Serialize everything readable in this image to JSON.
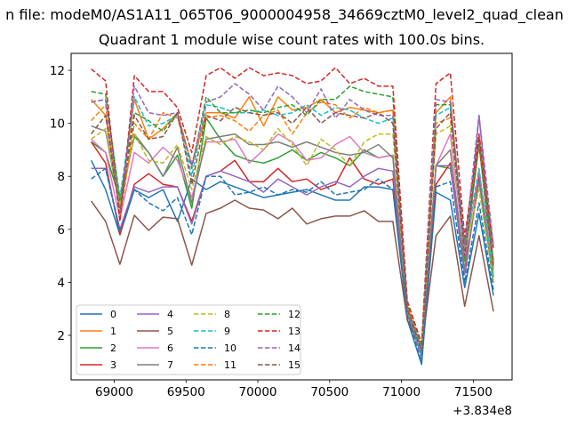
{
  "chart_data": {
    "type": "line",
    "suptitle": "n file: modeM0/AS1A11_065T06_9000004958_34669cztM0_level2_quad_clean",
    "title": "Quadrant 1 module wise count rates with 100.0s bins.",
    "xlabel": "",
    "ylabel": "",
    "x_offset_label": "+3.834e8",
    "xlim": [
      68700,
      71770
    ],
    "ylim": [
      0.32,
      12.64
    ],
    "xticks": [
      69000,
      69500,
      70000,
      70500,
      71000,
      71500
    ],
    "xtick_labels": [
      "69000",
      "69500",
      "70000",
      "70500",
      "71000",
      "71500"
    ],
    "yticks": [
      2,
      4,
      6,
      8,
      10,
      12
    ],
    "ytick_labels": [
      "2",
      "4",
      "6",
      "8",
      "10",
      "12"
    ],
    "grid": false,
    "legend_position": "lower-left",
    "legend_columns": 4,
    "x": [
      68840,
      68940,
      69040,
      69140,
      69240,
      69340,
      69440,
      69540,
      69640,
      69740,
      69840,
      69940,
      70040,
      70140,
      70240,
      70340,
      70440,
      70540,
      70640,
      70740,
      70840,
      70940,
      71040,
      71140,
      71240,
      71340,
      71440,
      71540,
      71640
    ],
    "series": [
      {
        "name": "0",
        "color": "#1f77b4",
        "dashed": false,
        "values": [
          8.6,
          7.5,
          5.8,
          7.5,
          7.2,
          7.5,
          6.3,
          7.9,
          7.5,
          7.8,
          7.6,
          7.4,
          7.2,
          7.3,
          7.4,
          7.5,
          7.3,
          7.1,
          7.1,
          7.6,
          7.6,
          7.5,
          2.6,
          0.9,
          7.4,
          7.1,
          3.8,
          6.6,
          3.5
        ]
      },
      {
        "name": "1",
        "color": "#ff7f0e",
        "dashed": false,
        "values": [
          10.9,
          10.3,
          6.9,
          10.9,
          9.4,
          9.8,
          10.4,
          8.4,
          10.4,
          10.4,
          10.2,
          11.0,
          9.9,
          11.0,
          10.5,
          10.6,
          10.9,
          10.4,
          10.6,
          10.5,
          10.4,
          10.5,
          3.1,
          1.5,
          10.4,
          11.0,
          5.0,
          9.2,
          4.5
        ]
      },
      {
        "name": "2",
        "color": "#2ca02c",
        "dashed": false,
        "values": [
          9.3,
          8.9,
          7.1,
          9.5,
          8.9,
          8.0,
          8.8,
          6.8,
          10.2,
          9.4,
          8.8,
          8.6,
          8.5,
          8.7,
          9.0,
          8.6,
          8.9,
          8.7,
          8.4,
          9.0,
          8.7,
          8.8,
          2.9,
          1.3,
          8.4,
          8.3,
          4.8,
          9.3,
          4.2
        ]
      },
      {
        "name": "3",
        "color": "#d62728",
        "dashed": false,
        "values": [
          9.3,
          8.5,
          5.8,
          7.7,
          8.1,
          7.7,
          7.6,
          6.3,
          8.0,
          8.2,
          8.6,
          7.8,
          7.8,
          8.3,
          7.8,
          7.9,
          7.5,
          7.7,
          8.7,
          7.9,
          7.7,
          7.9,
          2.9,
          1.2,
          7.7,
          8.5,
          4.3,
          8.0,
          4.0
        ]
      },
      {
        "name": "4",
        "color": "#9467bd",
        "dashed": false,
        "values": [
          8.3,
          8.3,
          6.0,
          7.6,
          7.4,
          7.6,
          7.6,
          6.2,
          8.0,
          8.2,
          8.0,
          7.8,
          7.4,
          7.9,
          7.6,
          7.3,
          7.6,
          7.8,
          7.6,
          8.0,
          8.3,
          8.2,
          2.8,
          1.2,
          8.4,
          8.4,
          4.3,
          10.3,
          4.7
        ]
      },
      {
        "name": "5",
        "color": "#8c564b",
        "dashed": false,
        "values": [
          7.07,
          6.3,
          4.68,
          6.53,
          5.96,
          6.46,
          6.4,
          4.65,
          6.6,
          6.8,
          7.1,
          6.8,
          6.73,
          6.4,
          6.8,
          6.2,
          6.4,
          6.5,
          6.5,
          6.7,
          6.3,
          6.3,
          2.57,
          1.46,
          5.76,
          6.5,
          3.1,
          5.76,
          2.9
        ]
      },
      {
        "name": "6",
        "color": "#e377c2",
        "dashed": false,
        "values": [
          9.4,
          8.9,
          6.4,
          8.9,
          8.5,
          9.1,
          8.6,
          7.2,
          9.3,
          9.3,
          9.4,
          8.5,
          9.0,
          9.6,
          9.3,
          8.6,
          8.7,
          9.2,
          9.5,
          8.9,
          8.7,
          8.8,
          2.9,
          1.4,
          8.4,
          9.6,
          5.0,
          8.2,
          4.5
        ]
      },
      {
        "name": "7",
        "color": "#7f7f7f",
        "dashed": false,
        "values": [
          9.9,
          9.7,
          6.8,
          9.6,
          8.9,
          8.0,
          9.1,
          7.0,
          9.4,
          9.5,
          9.6,
          9.2,
          9.2,
          9.3,
          9.1,
          9.3,
          9.1,
          8.9,
          8.8,
          8.9,
          9.2,
          8.7,
          2.8,
          1.4,
          8.4,
          9.0,
          4.5,
          7.8,
          4.0
        ]
      },
      {
        "name": "8",
        "color": "#bcbd22",
        "dashed": true,
        "values": [
          9.4,
          9.8,
          6.9,
          9.6,
          8.6,
          8.5,
          9.2,
          7.5,
          9.5,
          9.2,
          9.5,
          9.3,
          9.0,
          9.8,
          9.2,
          8.4,
          9.4,
          9.0,
          8.4,
          9.3,
          9.6,
          9.6,
          3.0,
          1.4,
          9.6,
          9.9,
          5.2,
          7.5,
          4.0
        ]
      },
      {
        "name": "9",
        "color": "#17becf",
        "dashed": true,
        "values": [
          10.8,
          10.9,
          7.2,
          11.0,
          9.9,
          10.0,
          10.3,
          8.0,
          10.7,
          10.6,
          10.4,
          10.4,
          10.5,
          10.3,
          10.4,
          10.7,
          10.3,
          10.6,
          10.5,
          10.2,
          10.0,
          10.2,
          3.0,
          1.3,
          10.3,
          10.6,
          5.2,
          8.3,
          4.2
        ]
      },
      {
        "name": "10",
        "color": "#1f77b4",
        "dashed": true,
        "values": [
          7.9,
          8.3,
          5.9,
          7.5,
          7.0,
          6.7,
          7.2,
          5.8,
          8.0,
          8.0,
          7.3,
          7.4,
          7.6,
          7.3,
          7.5,
          7.4,
          7.8,
          7.3,
          7.4,
          7.5,
          7.9,
          7.5,
          2.7,
          1.0,
          7.6,
          7.8,
          4.0,
          7.0,
          3.7
        ]
      },
      {
        "name": "11",
        "color": "#ff7f0e",
        "dashed": true,
        "values": [
          10.1,
          10.7,
          6.4,
          10.0,
          9.4,
          10.4,
          10.2,
          8.5,
          10.2,
          10.3,
          10.1,
          9.7,
          10.3,
          10.5,
          9.6,
          10.4,
          10.8,
          10.7,
          10.2,
          10.6,
          10.4,
          10.5,
          3.1,
          1.5,
          10.0,
          10.2,
          5.0,
          9.4,
          4.5
        ]
      },
      {
        "name": "12",
        "color": "#2ca02c",
        "dashed": true,
        "values": [
          11.2,
          11.1,
          7.1,
          10.4,
          10.1,
          9.7,
          10.4,
          8.3,
          11.0,
          10.4,
          10.4,
          10.5,
          10.4,
          10.6,
          10.7,
          10.3,
          10.9,
          10.9,
          11.4,
          11.2,
          11.1,
          11.0,
          3.2,
          1.6,
          10.7,
          10.7,
          5.4,
          9.5,
          4.8
        ]
      },
      {
        "name": "13",
        "color": "#d62728",
        "dashed": true,
        "values": [
          12.05,
          11.6,
          6.3,
          11.8,
          11.2,
          11.2,
          10.6,
          8.9,
          11.8,
          12.1,
          11.7,
          12.1,
          11.8,
          11.9,
          11.8,
          11.5,
          11.6,
          12.1,
          11.5,
          11.7,
          11.4,
          11.4,
          3.3,
          1.7,
          11.5,
          11.9,
          5.7,
          9.6,
          5.3
        ]
      },
      {
        "name": "14",
        "color": "#9467bd",
        "dashed": true,
        "values": [
          10.8,
          10.9,
          6.6,
          11.4,
          10.4,
          10.3,
          10.4,
          8.4,
          10.8,
          11.0,
          11.5,
          11.1,
          10.5,
          11.4,
          11.0,
          10.4,
          11.3,
          10.2,
          10.9,
          10.5,
          10.3,
          10.3,
          3.0,
          1.5,
          10.9,
          10.8,
          5.4,
          10.3,
          5.4
        ]
      },
      {
        "name": "15",
        "color": "#8c564b",
        "dashed": true,
        "values": [
          9.6,
          10.3,
          6.6,
          10.3,
          9.4,
          9.5,
          10.4,
          7.7,
          10.3,
          10.1,
          10.6,
          10.4,
          10.3,
          10.4,
          10.0,
          10.6,
          10.0,
          10.4,
          10.3,
          10.2,
          10.4,
          10.0,
          3.0,
          1.4,
          9.8,
          10.4,
          5.0,
          9.2,
          4.6
        ]
      }
    ]
  }
}
